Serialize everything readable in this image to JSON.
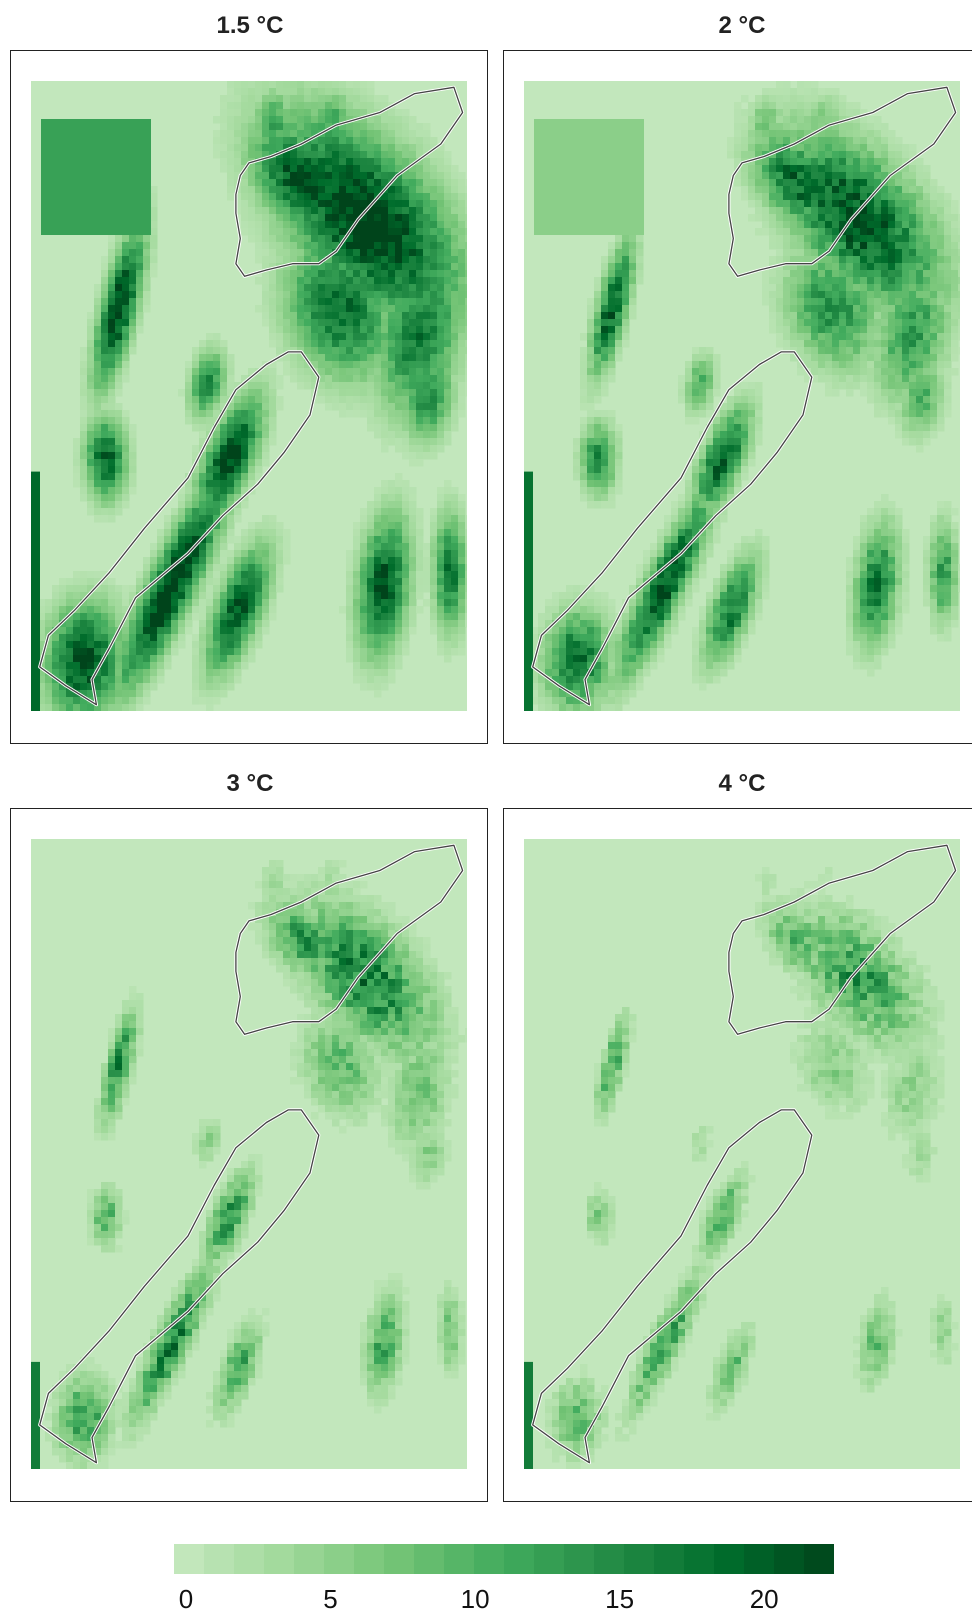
{
  "panels": [
    {
      "title": "1.5 °C",
      "intensity": 1.0
    },
    {
      "title": "2 °C",
      "intensity": 0.82
    },
    {
      "title": "3 °C",
      "intensity": 0.5
    },
    {
      "title": "4 °C",
      "intensity": 0.28
    }
  ],
  "legend": {
    "min": 0,
    "max": 22,
    "ticks": [
      "0",
      "5",
      "10",
      "15",
      "20"
    ],
    "tick_values": [
      0,
      5,
      10,
      15,
      20
    ],
    "colors": [
      "#c7e9c0",
      "#a1d99b",
      "#74c476",
      "#41ab5d",
      "#238b45",
      "#006d2c",
      "#00441b"
    ]
  }
}
